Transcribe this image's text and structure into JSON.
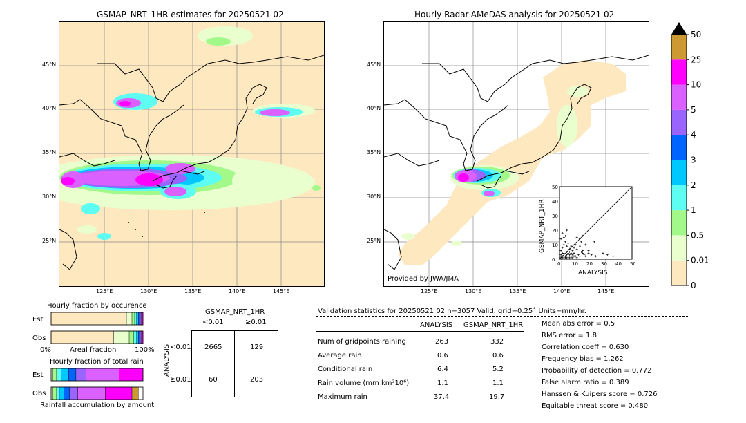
{
  "left_map": {
    "title": "GSMAP_NRT_1HR estimates for 20250521 02",
    "lat_labels": [
      "45°N",
      "40°N",
      "35°N",
      "30°N",
      "25°N"
    ],
    "lon_labels": [
      "125°E",
      "130°E",
      "135°E",
      "140°E",
      "145°E"
    ]
  },
  "right_map": {
    "title": "Hourly Radar-AMeDAS analysis for 20250521 02",
    "lat_labels": [
      "45°N",
      "40°N",
      "35°N",
      "30°N",
      "25°N"
    ],
    "lon_labels": [
      "125°E",
      "130°E",
      "135°E",
      "140°E",
      "145°E"
    ],
    "credit": "Provided by JWA/JMA"
  },
  "colorbar": {
    "labels": [
      "0",
      "0.01",
      "0.5",
      "1",
      "2",
      "3",
      "4",
      "5",
      "10",
      "25",
      "50"
    ],
    "colors": [
      "#fde8c0",
      "#eaffce",
      "#a2f98a",
      "#5efdf2",
      "#00c8ff",
      "#0064ff",
      "#9a64ff",
      "#da60ff",
      "#ff00ff",
      "#cc9933"
    ]
  },
  "chart_data": [
    {
      "type": "scatter",
      "xlabel": "ANALYSIS",
      "ylabel": "GSMAP_NRT_1HR",
      "xlim": [
        0,
        50
      ],
      "ylim": [
        0,
        50
      ],
      "ticks": [
        "0",
        "10",
        "20",
        "30",
        "40",
        "50"
      ],
      "points": [
        [
          1,
          2
        ],
        [
          2,
          1
        ],
        [
          3,
          4
        ],
        [
          4,
          2
        ],
        [
          5,
          3
        ],
        [
          6,
          1
        ],
        [
          7,
          5
        ],
        [
          8,
          2
        ],
        [
          9,
          3
        ],
        [
          10,
          4
        ],
        [
          11,
          2
        ],
        [
          12,
          1
        ],
        [
          13,
          3
        ],
        [
          14,
          2
        ],
        [
          15,
          5
        ],
        [
          16,
          4
        ],
        [
          17,
          3
        ],
        [
          18,
          2
        ],
        [
          20,
          4
        ],
        [
          22,
          3
        ],
        [
          25,
          2
        ],
        [
          30,
          4
        ],
        [
          33,
          3
        ],
        [
          37,
          2
        ],
        [
          1,
          6
        ],
        [
          2,
          8
        ],
        [
          3,
          10
        ],
        [
          4,
          12
        ],
        [
          5,
          9
        ],
        [
          6,
          11
        ],
        [
          7,
          7
        ],
        [
          8,
          9
        ],
        [
          9,
          6
        ],
        [
          10,
          8
        ],
        [
          11,
          10
        ],
        [
          12,
          7
        ],
        [
          14,
          9
        ],
        [
          15,
          12
        ],
        [
          16,
          6
        ],
        [
          18,
          10
        ],
        [
          1,
          14
        ],
        [
          2,
          18
        ],
        [
          3,
          15
        ],
        [
          4,
          16
        ],
        [
          5,
          20
        ],
        [
          12,
          15
        ],
        [
          14,
          14
        ],
        [
          16,
          16
        ],
        [
          20,
          6
        ],
        [
          24,
          12
        ],
        [
          1,
          1
        ],
        [
          2,
          2
        ],
        [
          3,
          1
        ],
        [
          4,
          1
        ],
        [
          5,
          1
        ],
        [
          6,
          2
        ],
        [
          7,
          1
        ],
        [
          8,
          1
        ],
        [
          1,
          3
        ],
        [
          2,
          4
        ],
        [
          3,
          2
        ],
        [
          5,
          5
        ],
        [
          6,
          4
        ],
        [
          7,
          3
        ],
        [
          8,
          4
        ],
        [
          9,
          1
        ],
        [
          10,
          2
        ]
      ]
    },
    {
      "type": "bar",
      "title": "Hourly fraction by occurence",
      "categories": [
        "Est",
        "Obs"
      ],
      "xlabel": "Areal fraction",
      "x_ticks": [
        "0%",
        "100%"
      ],
      "series_colors": [
        "#fde8c0",
        "#eaffce",
        "#a2f98a",
        "#5efdf2",
        "#00c8ff",
        "#0064ff",
        "#9a64ff",
        "#da60ff",
        "#ff00ff",
        "#cc9933"
      ],
      "values": [
        [
          0.82,
          0.06,
          0.03,
          0.02,
          0.02,
          0.02,
          0.01,
          0.01,
          0.01,
          0.0
        ],
        [
          0.68,
          0.17,
          0.05,
          0.03,
          0.02,
          0.02,
          0.01,
          0.01,
          0.01,
          0.0
        ]
      ]
    },
    {
      "type": "bar",
      "title": "Hourly fraction of total rain",
      "categories": [
        "Est",
        "Obs"
      ],
      "xlabel": "Rainfall accumulation by amount",
      "series_colors": [
        "#fde8c0",
        "#eaffce",
        "#a2f98a",
        "#5efdf2",
        "#00c8ff",
        "#0064ff",
        "#9a64ff",
        "#da60ff",
        "#ff00ff",
        "#cc9933"
      ],
      "values": [
        [
          0.0,
          0.02,
          0.04,
          0.05,
          0.08,
          0.08,
          0.11,
          0.36,
          0.26,
          0.0
        ],
        [
          0.0,
          0.02,
          0.04,
          0.03,
          0.05,
          0.06,
          0.09,
          0.3,
          0.29,
          0.07
        ]
      ]
    },
    {
      "type": "table",
      "title": "GSMAP_NRT_1HR",
      "col_headers": [
        "<0.01",
        "≥0.01"
      ],
      "row_axis": "ANALYSIS",
      "row_headers": [
        "<0.01",
        "≥0.01"
      ],
      "cells": [
        [
          "2665",
          "129"
        ],
        [
          "60",
          "203"
        ]
      ]
    }
  ],
  "validation": {
    "header": "Validation statistics for 20250521 02  n=3057 Valid. grid=0.25˚ Units=mm/hr.",
    "col_analysis": "ANALYSIS",
    "col_gsmap": "GSMAP_NRT_1HR",
    "rows": [
      {
        "label": "Num of gridpoints raining",
        "analysis": "263",
        "gsmap": "332"
      },
      {
        "label": "Average rain",
        "analysis": "0.6",
        "gsmap": "0.6"
      },
      {
        "label": "Conditional rain",
        "analysis": "6.4",
        "gsmap": "5.2"
      },
      {
        "label": "Rain volume (mm km²10⁶)",
        "analysis": "1.1",
        "gsmap": "1.1"
      },
      {
        "label": "Maximum rain",
        "analysis": "37.4",
        "gsmap": "19.7"
      }
    ],
    "scores": [
      "Mean abs error =    0.5",
      "RMS error =    1.8",
      "Correlation coeff =  0.630",
      "Frequency bias =  1.262",
      "Probability of detection =  0.772",
      "False alarm ratio =  0.389",
      "Hanssen & Kuipers score =  0.726",
      "Equitable threat score =  0.480"
    ]
  }
}
